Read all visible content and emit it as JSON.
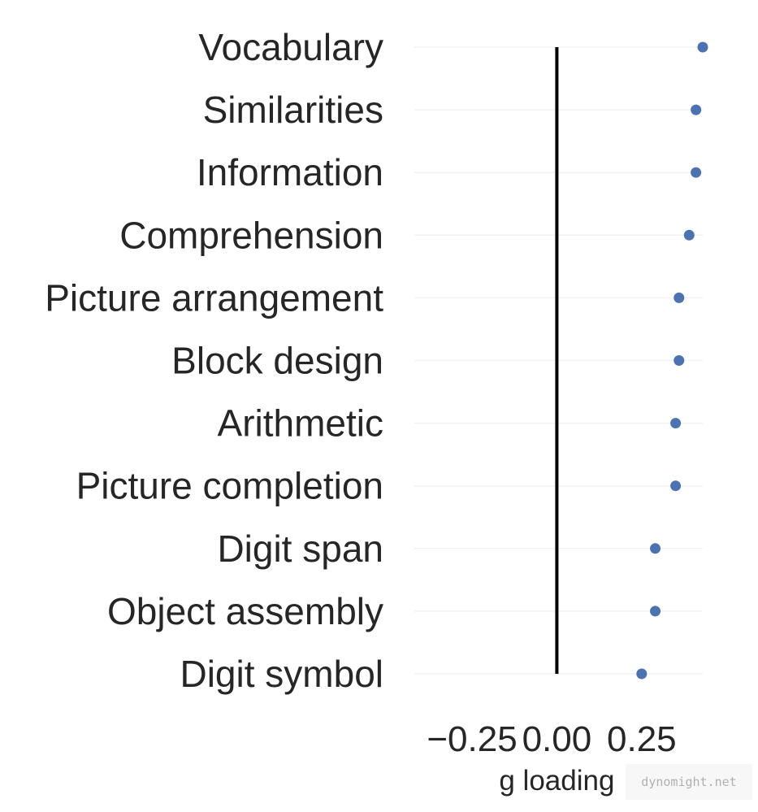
{
  "chart_data": {
    "type": "scatter",
    "categories": [
      "Vocabulary",
      "Similarities",
      "Information",
      "Comprehension",
      "Picture arrangement",
      "Block design",
      "Arithmetic",
      "Picture completion",
      "Digit span",
      "Object assembly",
      "Digit symbol"
    ],
    "values": [
      0.43,
      0.41,
      0.41,
      0.39,
      0.36,
      0.36,
      0.35,
      0.35,
      0.29,
      0.29,
      0.25
    ],
    "xlabel": "g loading",
    "ylabel": "",
    "xticks": [
      -0.25,
      0.0,
      0.25
    ],
    "xtick_labels": [
      "−0.25",
      "0.00",
      "0.25"
    ],
    "xlim": [
      -0.42,
      0.43
    ],
    "reference_line_x": 0.0,
    "grid": true,
    "point_color": "#4c72b0",
    "reference_line_color": "#000000"
  },
  "watermark": "dynomight.net"
}
